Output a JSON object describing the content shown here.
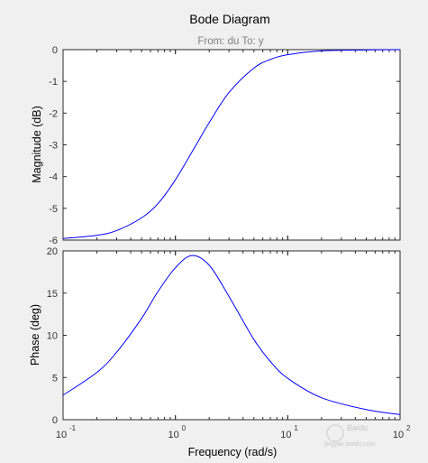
{
  "chart_data": {
    "type": "line",
    "title": "Bode Diagram",
    "subtitle": "From: du  To: y",
    "xlabel": "Frequency  (rad/s)",
    "xscale": "log",
    "xlim": [
      0.1,
      100
    ],
    "x_ticks": [
      {
        "value": 0.1,
        "base": "10",
        "exp": "-1"
      },
      {
        "value": 1,
        "base": "10",
        "exp": "0"
      },
      {
        "value": 10,
        "base": "10",
        "exp": "1"
      },
      {
        "value": 100,
        "base": "10",
        "exp": "2"
      }
    ],
    "panels": [
      {
        "name": "magnitude",
        "ylabel": "Magnitude (dB)",
        "ylim": [
          -6,
          0
        ],
        "y_ticks": [
          "0",
          "-1",
          "-2",
          "-3",
          "-4",
          "-5",
          "-6"
        ],
        "y_tick_values": [
          0,
          -1,
          -2,
          -3,
          -4,
          -5,
          -6
        ],
        "x": [
          0.1,
          0.2,
          0.3,
          0.5,
          0.7,
          1,
          1.5,
          2,
          3,
          5,
          7,
          10,
          20,
          50,
          100
        ],
        "y": [
          -5.95,
          -5.85,
          -5.7,
          -5.3,
          -4.85,
          -4.1,
          -3.05,
          -2.3,
          -1.35,
          -0.58,
          -0.31,
          -0.16,
          -0.04,
          -0.01,
          0
        ]
      },
      {
        "name": "phase",
        "ylabel": "Phase (deg)",
        "ylim": [
          0,
          20
        ],
        "y_ticks": [
          "20",
          "15",
          "10",
          "5",
          "0"
        ],
        "y_tick_values": [
          20,
          15,
          10,
          5,
          0
        ],
        "x": [
          0.1,
          0.2,
          0.3,
          0.5,
          0.7,
          1,
          1.4,
          2,
          3,
          5,
          7,
          10,
          20,
          50,
          100
        ],
        "y": [
          2.9,
          5.6,
          8.0,
          12.0,
          15.2,
          18.0,
          19.45,
          18.3,
          14.6,
          9.5,
          6.9,
          4.9,
          2.6,
          1.2,
          0.6
        ]
      }
    ],
    "series": [
      {
        "color": "#0000ff"
      }
    ],
    "grid": false
  },
  "watermark": {
    "text": "Baidu",
    "subtext": "jingyan.baidu.com"
  }
}
